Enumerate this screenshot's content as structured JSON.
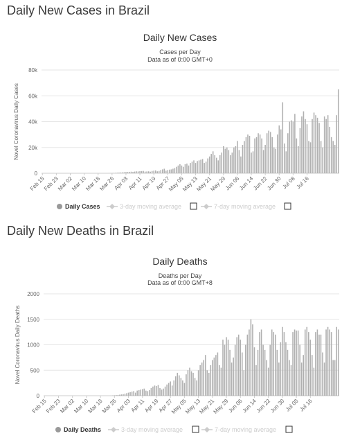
{
  "page": {
    "heading_cases": "Daily New Cases in Brazil",
    "heading_deaths": "Daily New Deaths in Brazil"
  },
  "colors": {
    "bar": "#b0b0b0",
    "grid": "#e6e6e6",
    "axis_text": "#666666",
    "legend_inactive": "#cccccc",
    "legend_active_marker": "#999999"
  },
  "chart_data": [
    {
      "type": "bar",
      "title": "Daily New Cases",
      "subtitle_line1": "Cases per Day",
      "subtitle_line2": "Data as of 0:00 GMT+0",
      "ylabel": "Novel Coronavirus Daily Cases",
      "xlabel": "",
      "ylim": [
        0,
        80000
      ],
      "yticks": [
        0,
        20000,
        40000,
        60000,
        80000
      ],
      "ytick_labels": [
        "0",
        "20k",
        "40k",
        "60k",
        "80k"
      ],
      "xtick_labels": [
        "Feb 15",
        "Feb 23",
        "Mar 02",
        "Mar 10",
        "Mar 18",
        "Mar 26",
        "Apr 03",
        "Apr 11",
        "Apr 19",
        "Apr 27",
        "May 05",
        "May 13",
        "May 21",
        "May 29",
        "Jun 06",
        "Jun 14",
        "Jun 22",
        "Jun 30",
        "Jul 08",
        "Jul 16"
      ],
      "grid": true,
      "legend": [
        {
          "label": "Daily Cases",
          "active": true
        },
        {
          "label": "3-day moving average",
          "active": false
        },
        {
          "label": "7-day moving average",
          "active": false
        }
      ],
      "start_date": "Feb 15",
      "values": [
        0,
        0,
        0,
        0,
        0,
        0,
        0,
        0,
        0,
        0,
        0,
        0,
        0,
        0,
        0,
        0,
        0,
        0,
        0,
        0,
        0,
        0,
        0,
        0,
        0,
        0,
        0,
        0,
        0,
        0,
        0,
        0,
        0,
        0,
        0,
        0,
        0,
        0,
        50,
        100,
        150,
        250,
        300,
        400,
        500,
        600,
        700,
        800,
        900,
        1000,
        1100,
        1200,
        1000,
        1300,
        1500,
        1400,
        1600,
        1700,
        1800,
        1300,
        1400,
        1500,
        1200,
        1800,
        2000,
        2200,
        1500,
        1800,
        2500,
        3000,
        3500,
        2000,
        2500,
        2800,
        3000,
        3500,
        4000,
        5000,
        6000,
        7000,
        6000,
        5000,
        7000,
        7500,
        6000,
        8000,
        9000,
        10000,
        8000,
        9500,
        10000,
        10500,
        11000,
        8000,
        9000,
        11500,
        13000,
        15000,
        17000,
        14000,
        12000,
        10000,
        14000,
        16000,
        21000,
        19000,
        20000,
        18000,
        14000,
        16000,
        20000,
        21000,
        25000,
        18000,
        13000,
        22000,
        25000,
        28000,
        30000,
        29000,
        16000,
        17000,
        27000,
        28000,
        31000,
        30000,
        27000,
        18000,
        22000,
        31000,
        33000,
        32000,
        28000,
        20000,
        19000,
        30000,
        37000,
        34000,
        55000,
        23000,
        17000,
        31000,
        40000,
        41000,
        40000,
        46000,
        27000,
        21000,
        35000,
        44000,
        48000,
        42000,
        38000,
        25000,
        24000,
        42000,
        47000,
        45000,
        43000,
        39000,
        25000,
        20000,
        44000,
        42000,
        45000,
        36000,
        28000,
        25000,
        22000,
        45000,
        65000
      ]
    },
    {
      "type": "bar",
      "title": "Daily Deaths",
      "subtitle_line1": "Deaths per Day",
      "subtitle_line2": "Data as of 0:00 GMT+8",
      "ylabel": "Novel Coronavirus Daily Deaths",
      "xlabel": "",
      "ylim": [
        0,
        2000
      ],
      "yticks": [
        0,
        500,
        1000,
        1500,
        2000
      ],
      "ytick_labels": [
        "0",
        "500",
        "1000",
        "1500",
        "2000"
      ],
      "xtick_labels": [
        "Feb 15",
        "Feb 23",
        "Mar 02",
        "Mar 10",
        "Mar 18",
        "Mar 26",
        "Apr 03",
        "Apr 11",
        "Apr 19",
        "Apr 27",
        "May 05",
        "May 13",
        "May 21",
        "May 29",
        "Jun 06",
        "Jun 14",
        "Jun 22",
        "Jun 30",
        "Jul 08",
        "Jul 16"
      ],
      "grid": true,
      "legend": [
        {
          "label": "Daily Deaths",
          "active": true
        },
        {
          "label": "3-day moving average",
          "active": false
        },
        {
          "label": "7-day moving average",
          "active": false
        }
      ],
      "start_date": "Feb 15",
      "values": [
        0,
        0,
        0,
        0,
        0,
        0,
        0,
        0,
        0,
        0,
        0,
        0,
        0,
        0,
        0,
        0,
        0,
        0,
        0,
        0,
        0,
        0,
        0,
        0,
        0,
        0,
        0,
        0,
        0,
        0,
        0,
        0,
        0,
        0,
        0,
        0,
        0,
        0,
        1,
        5,
        8,
        12,
        15,
        20,
        25,
        30,
        40,
        50,
        60,
        70,
        80,
        90,
        60,
        100,
        110,
        120,
        130,
        140,
        100,
        90,
        110,
        150,
        180,
        200,
        190,
        210,
        150,
        120,
        140,
        180,
        220,
        250,
        280,
        200,
        300,
        380,
        450,
        400,
        350,
        300,
        250,
        420,
        500,
        550,
        480,
        450,
        350,
        300,
        500,
        600,
        650,
        700,
        800,
        500,
        450,
        600,
        700,
        750,
        800,
        850,
        600,
        550,
        1100,
        1000,
        1150,
        1100,
        900,
        650,
        750,
        1000,
        1150,
        1200,
        1100,
        850,
        500,
        1000,
        1200,
        1300,
        1500,
        1400,
        950,
        600,
        900,
        1250,
        1300,
        1000,
        900,
        700,
        550,
        1000,
        1300,
        1250,
        1200,
        900,
        650,
        1050,
        1350,
        1250,
        1050,
        900,
        700,
        600,
        1250,
        1300,
        1280,
        1280,
        1000,
        650,
        800,
        1300,
        1350,
        1250,
        1100,
        800,
        550,
        1250,
        1300,
        1200,
        1200,
        850,
        650,
        1300,
        1350,
        1300,
        1250,
        700,
        700,
        1350,
        1300
      ]
    }
  ]
}
